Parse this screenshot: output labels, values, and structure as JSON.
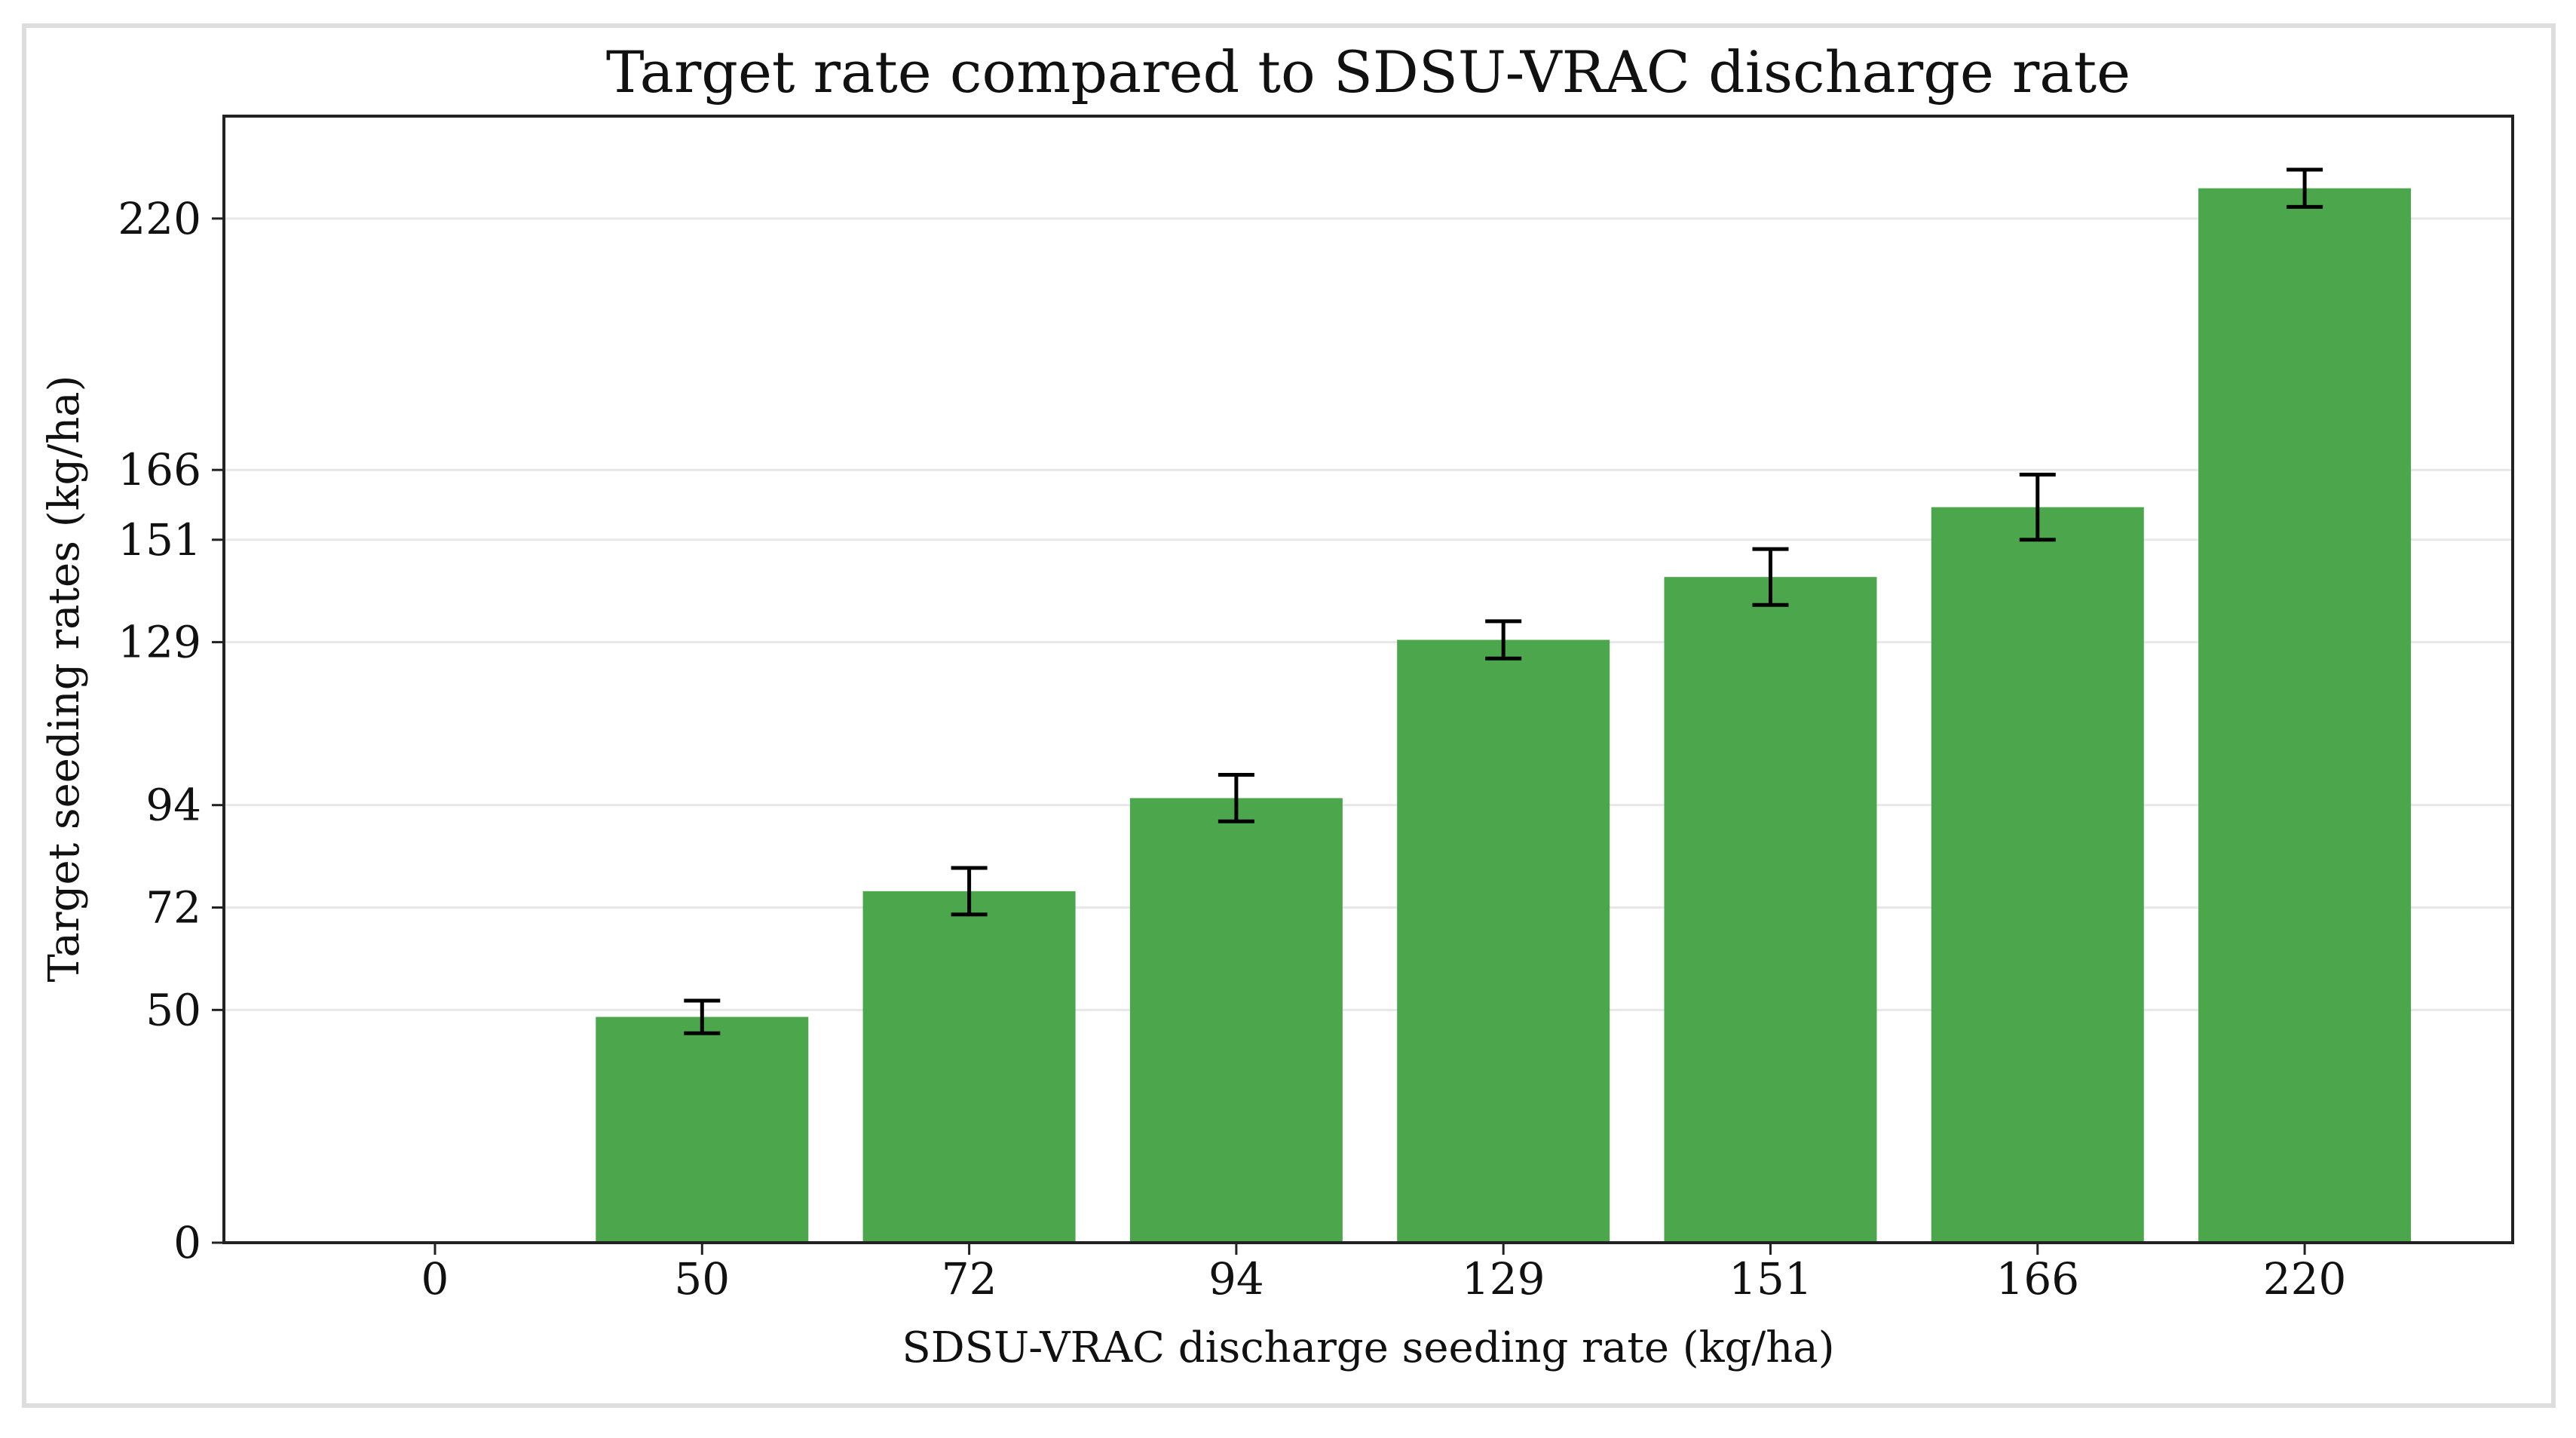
{
  "chart_data": {
    "type": "bar",
    "title": "Target rate compared to SDSU-VRAC discharge rate",
    "xlabel": "SDSU-VRAC discharge seeding rate (kg/ha)",
    "ylabel": "Target seeding rates (kg/ha)",
    "categories": [
      "0",
      "50",
      "72",
      "94",
      "129",
      "151",
      "166",
      "220"
    ],
    "values": [
      0,
      48.5,
      75.5,
      95.5,
      129.5,
      143,
      158,
      226.5
    ],
    "error": [
      0,
      3.5,
      5,
      5,
      4,
      6,
      7,
      4
    ],
    "yticks": [
      0,
      50,
      72,
      94,
      129,
      151,
      166,
      220
    ],
    "ylim": [
      0,
      242
    ],
    "bar_color": "#4ca64c",
    "grid": true,
    "grid_axis": "y"
  }
}
